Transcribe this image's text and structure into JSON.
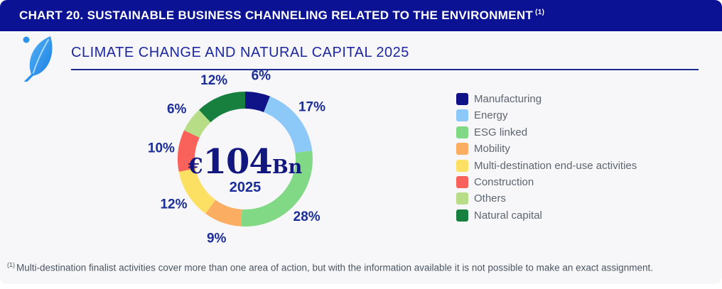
{
  "header": {
    "title": "CHART 20. SUSTAINABLE BUSINESS CHANNELING RELATED TO THE ENVIRONMENT",
    "footnote_marker": "(1)"
  },
  "section": {
    "title": "CLIMATE CHANGE AND NATURAL CAPITAL 2025",
    "icon": "leaf-icon"
  },
  "chart_data": {
    "type": "pie",
    "subtype": "donut",
    "title": "CLIMATE CHANGE AND NATURAL CAPITAL 2025",
    "unit": "%",
    "legend_position": "right",
    "center": {
      "prefix": "€",
      "value": "104",
      "suffix": "Bn",
      "sublabel": "2025"
    },
    "segments": [
      {
        "label": "Manufacturing",
        "value": 6,
        "color": "#101287"
      },
      {
        "label": "Energy",
        "value": 17,
        "color": "#8dc9f8"
      },
      {
        "label": "ESG linked",
        "value": 28,
        "color": "#82d985"
      },
      {
        "label": "Mobility",
        "value": 9,
        "color": "#fbad61"
      },
      {
        "label": "Multi-destination end-use activities",
        "value": 12,
        "color": "#fce064"
      },
      {
        "label": "Construction",
        "value": 10,
        "color": "#f9625a"
      },
      {
        "label": "Others",
        "value": 6,
        "color": "#b7de86"
      },
      {
        "label": "Natural capital",
        "value": 12,
        "color": "#18803f"
      }
    ]
  },
  "footnote": {
    "marker": "(1)",
    "text": "Multi-destination finalist activities cover more than one area of action, but with the information available it is not possible to make an exact assignment."
  },
  "colors": {
    "header_bg": "#0c1294",
    "card_bg": "#f7f7f9",
    "accent_navy": "#1c27a0",
    "value_navy": "#11177f",
    "legend_text": "#5d6670",
    "footnote_text": "#4b5662"
  }
}
